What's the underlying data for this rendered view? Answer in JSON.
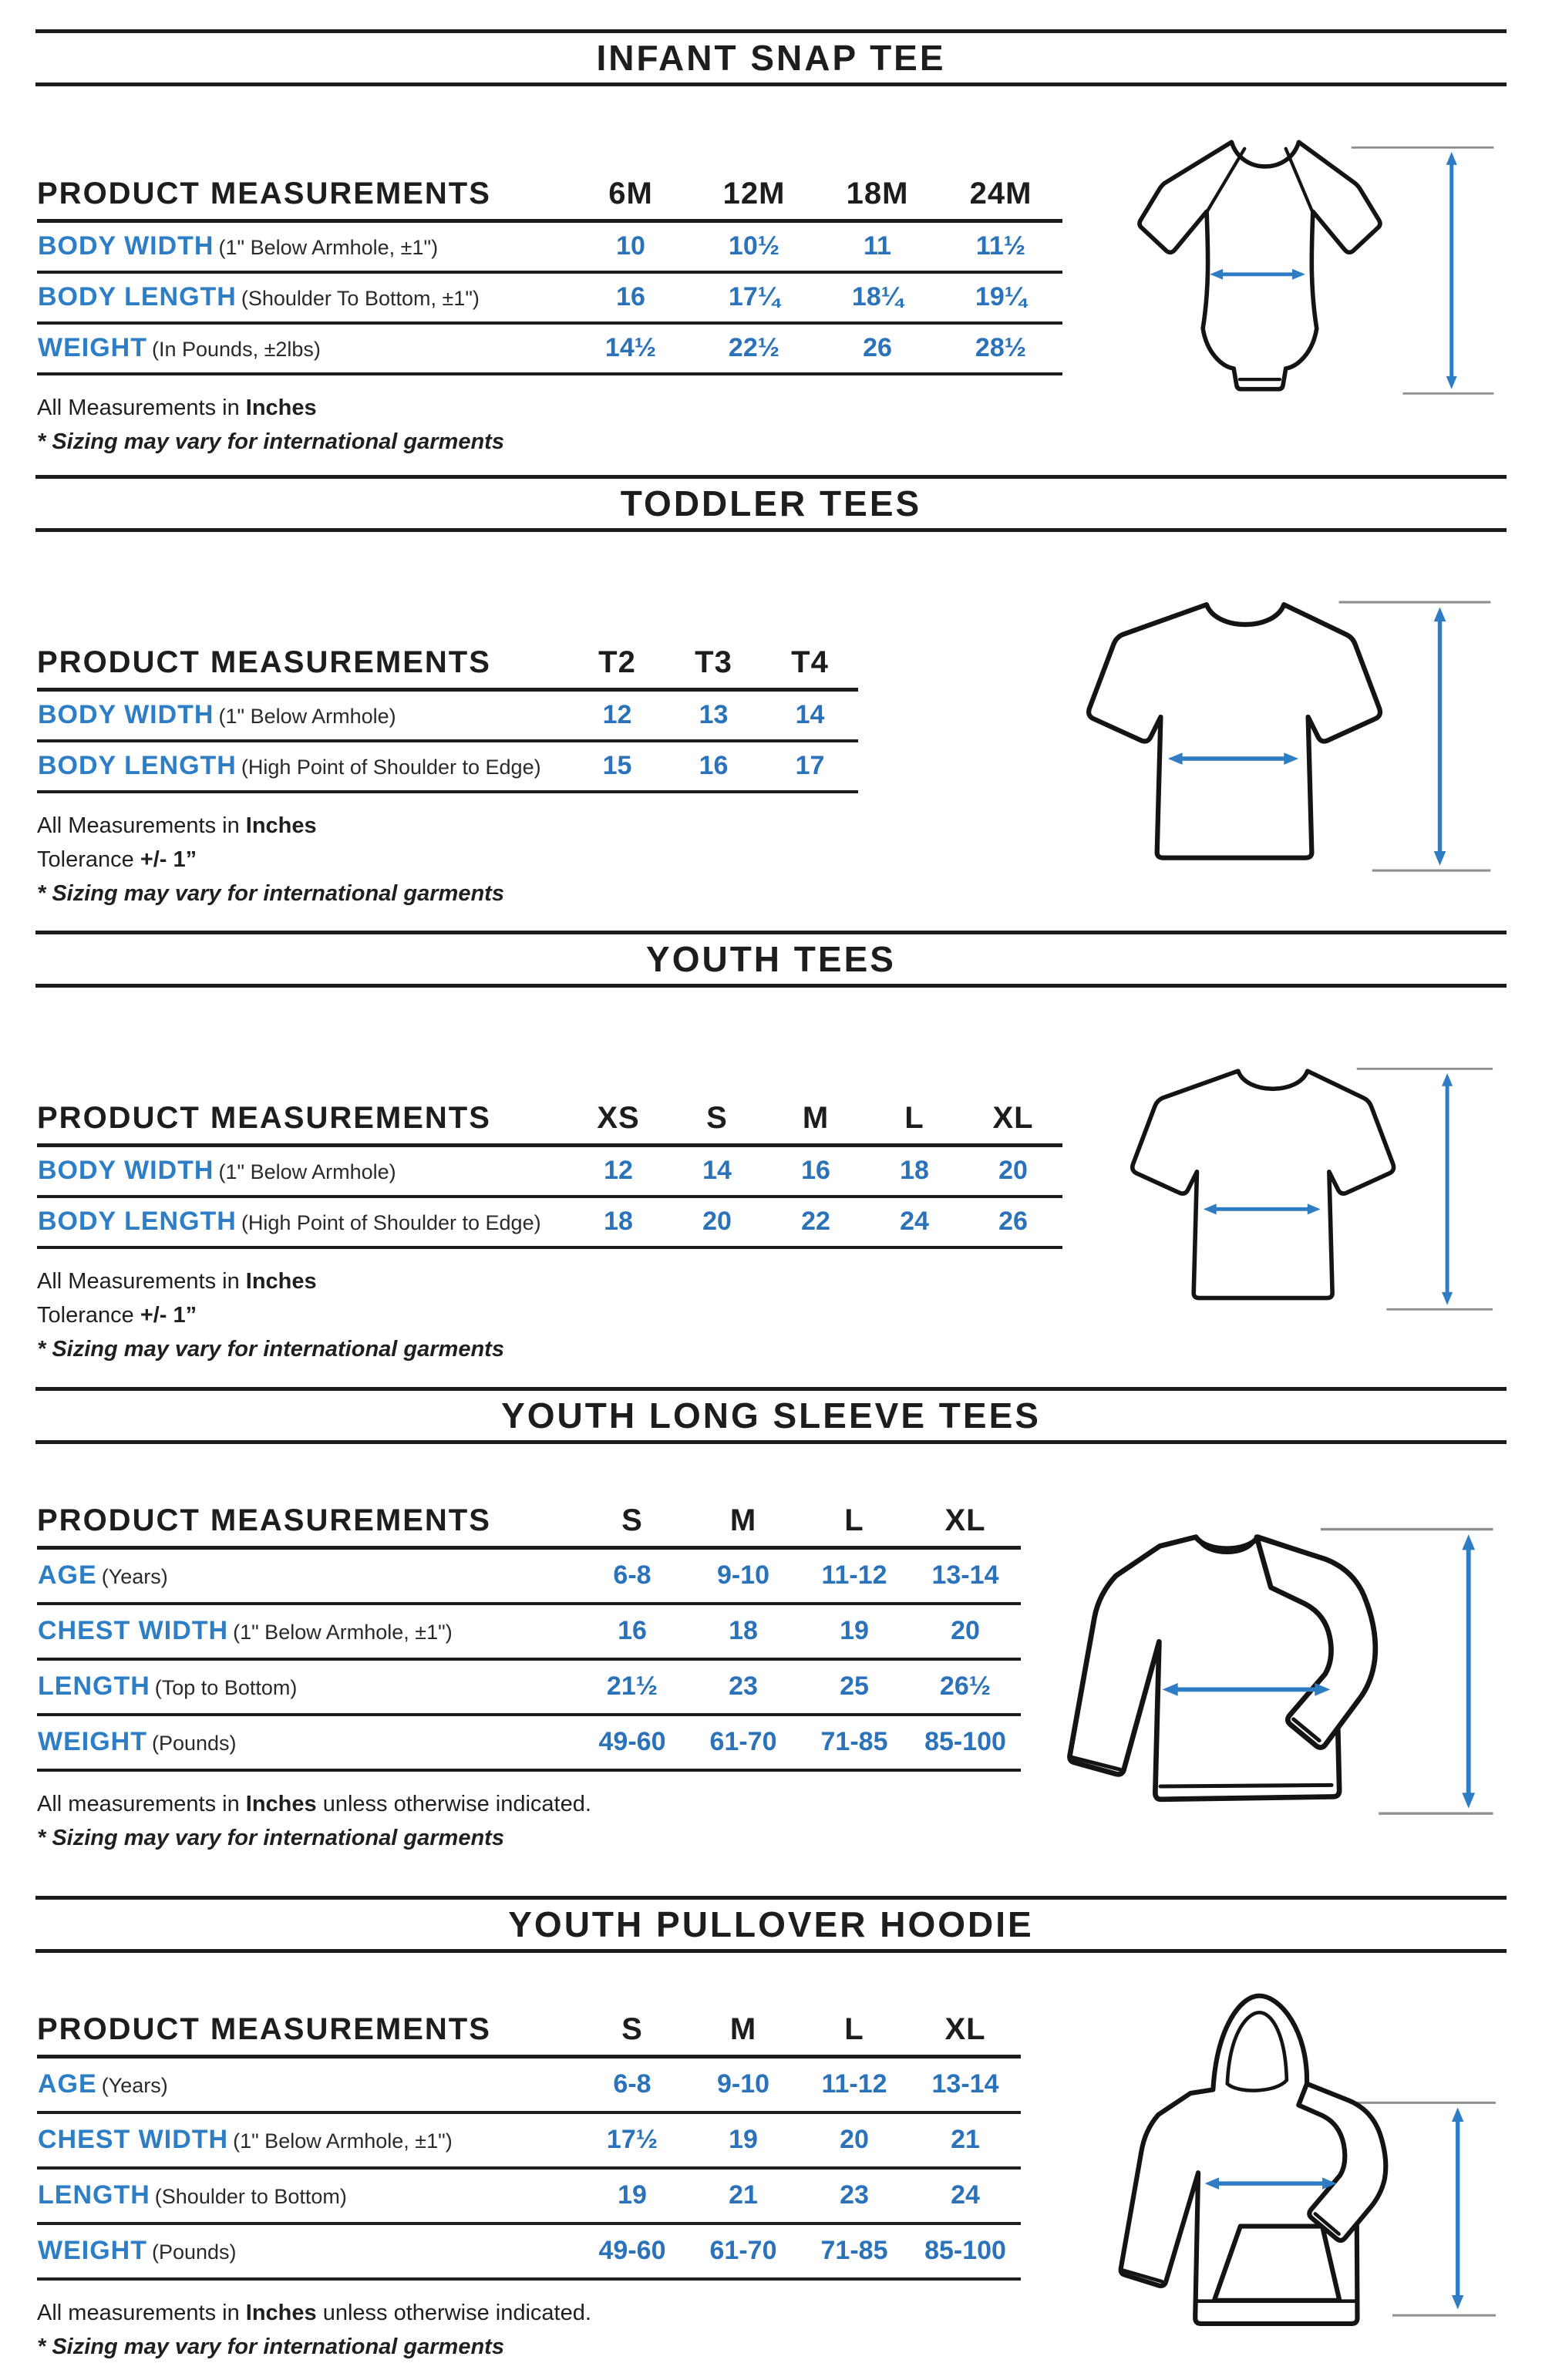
{
  "colors": {
    "blue": "#2e7ec6",
    "blue2": "#2a72b9",
    "arrow": "#2e7cc3",
    "gray": "#8f8f8f",
    "ink": "#1b1b1b"
  },
  "sections": [
    {
      "id": "infant-snap-tee",
      "title": "INFANT SNAP TEE",
      "illustration": "onesie-outline",
      "table": {
        "header_label": "PRODUCT MEASUREMENTS",
        "columns": [
          "6M",
          "12M",
          "18M",
          "24M"
        ],
        "rows": [
          {
            "label": "BODY WIDTH",
            "note": "(1\" Below Armhole, ±1\")",
            "values": [
              "10",
              "10½",
              "11",
              "11½"
            ]
          },
          {
            "label": "BODY LENGTH",
            "note": "(Shoulder To Bottom, ±1\")",
            "values": [
              "16",
              "17¼",
              "18¼",
              "19¼"
            ]
          },
          {
            "label": "WEIGHT",
            "note": "(In Pounds, ±2lbs)",
            "values": [
              "14½",
              "22½",
              "26",
              "28½"
            ]
          }
        ]
      },
      "notes": [
        {
          "segments": [
            {
              "style": "r",
              "text": "All Measurements in "
            },
            {
              "style": "b",
              "text": "Inches"
            }
          ]
        },
        {
          "segments": [
            {
              "style": "bi",
              "text": "* Sizing may vary for international garments"
            }
          ]
        }
      ]
    },
    {
      "id": "toddler-tees",
      "title": "TODDLER TEES",
      "illustration": "tee-outline",
      "table": {
        "header_label": "PRODUCT MEASUREMENTS",
        "columns": [
          "T2",
          "T3",
          "T4"
        ],
        "rows": [
          {
            "label": "BODY WIDTH",
            "note": "(1\" Below Armhole)",
            "values": [
              "12",
              "13",
              "14"
            ]
          },
          {
            "label": "BODY LENGTH",
            "note": "(High Point of Shoulder to Edge)",
            "values": [
              "15",
              "16",
              "17"
            ]
          }
        ]
      },
      "notes": [
        {
          "segments": [
            {
              "style": "r",
              "text": "All Measurements in "
            },
            {
              "style": "b",
              "text": "Inches"
            }
          ]
        },
        {
          "segments": [
            {
              "style": "r",
              "text": "Tolerance "
            },
            {
              "style": "b",
              "text": "+/- 1”"
            }
          ]
        },
        {
          "segments": [
            {
              "style": "bi",
              "text": "* Sizing may vary for international garments"
            }
          ]
        }
      ]
    },
    {
      "id": "youth-tees",
      "title": "YOUTH TEES",
      "illustration": "tee-outline",
      "table": {
        "header_label": "PRODUCT MEASUREMENTS",
        "columns": [
          "XS",
          "S",
          "M",
          "L",
          "XL"
        ],
        "rows": [
          {
            "label": "BODY WIDTH",
            "note": "(1\" Below Armhole)",
            "values": [
              "12",
              "14",
              "16",
              "18",
              "20"
            ]
          },
          {
            "label": "BODY LENGTH",
            "note": "(High Point of Shoulder to Edge)",
            "values": [
              "18",
              "20",
              "22",
              "24",
              "26"
            ]
          }
        ]
      },
      "notes": [
        {
          "segments": [
            {
              "style": "r",
              "text": "All Measurements in "
            },
            {
              "style": "b",
              "text": "Inches"
            }
          ]
        },
        {
          "segments": [
            {
              "style": "r",
              "text": "Tolerance "
            },
            {
              "style": "b",
              "text": "+/- 1”"
            }
          ]
        },
        {
          "segments": [
            {
              "style": "bi",
              "text": "* Sizing may vary for international garments"
            }
          ]
        }
      ]
    },
    {
      "id": "youth-long-sleeve-tees",
      "title": "YOUTH LONG SLEEVE TEES",
      "illustration": "long-sleeve-tee-outline",
      "table": {
        "header_label": "PRODUCT MEASUREMENTS",
        "columns": [
          "S",
          "M",
          "L",
          "XL"
        ],
        "rows": [
          {
            "label": "AGE",
            "note": "(Years)",
            "values": [
              "6-8",
              "9-10",
              "11-12",
              "13-14"
            ]
          },
          {
            "label": "CHEST WIDTH",
            "note": "(1\" Below Armhole, ±1\")",
            "values": [
              "16",
              "18",
              "19",
              "20"
            ]
          },
          {
            "label": "LENGTH",
            "note": "(Top to Bottom)",
            "values": [
              "21½",
              "23",
              "25",
              "26½"
            ]
          },
          {
            "label": "WEIGHT",
            "note": "(Pounds)",
            "values": [
              "49-60",
              "61-70",
              "71-85",
              "85-100"
            ]
          }
        ]
      },
      "notes": [
        {
          "segments": [
            {
              "style": "r",
              "text": "All measurements in "
            },
            {
              "style": "b",
              "text": "Inches"
            },
            {
              "style": "r",
              "text": " unless otherwise indicated."
            }
          ]
        },
        {
          "segments": [
            {
              "style": "bi",
              "text": "* Sizing may vary for international garments"
            }
          ]
        }
      ]
    },
    {
      "id": "youth-pullover-hoodie",
      "title": "YOUTH PULLOVER HOODIE",
      "illustration": "hoodie-outline",
      "table": {
        "header_label": "PRODUCT MEASUREMENTS",
        "columns": [
          "S",
          "M",
          "L",
          "XL"
        ],
        "rows": [
          {
            "label": "AGE",
            "note": "(Years)",
            "values": [
              "6-8",
              "9-10",
              "11-12",
              "13-14"
            ]
          },
          {
            "label": "CHEST WIDTH",
            "note": "(1\" Below Armhole, ±1\")",
            "values": [
              "17½",
              "19",
              "20",
              "21"
            ]
          },
          {
            "label": "LENGTH",
            "note": "(Shoulder to Bottom)",
            "values": [
              "19",
              "21",
              "23",
              "24"
            ]
          },
          {
            "label": "WEIGHT",
            "note": "(Pounds)",
            "values": [
              "49-60",
              "61-70",
              "71-85",
              "85-100"
            ]
          }
        ]
      },
      "notes": [
        {
          "segments": [
            {
              "style": "r",
              "text": "All measurements in "
            },
            {
              "style": "b",
              "text": "Inches"
            },
            {
              "style": "r",
              "text": " unless otherwise indicated."
            }
          ]
        },
        {
          "segments": [
            {
              "style": "bi",
              "text": "* Sizing may vary for international garments"
            }
          ]
        }
      ]
    }
  ]
}
